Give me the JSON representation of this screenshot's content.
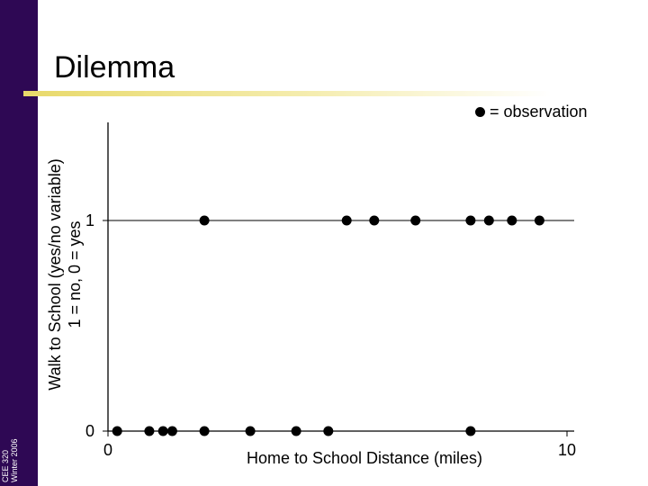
{
  "slide": {
    "title": "Dilemma",
    "sidebar_line1": "CEE 320",
    "sidebar_line2": "Winter 2006",
    "legend_text": "= observation"
  },
  "colors": {
    "sidebar": "#2e0854",
    "accent_rule": "#e8d96a",
    "marker": "#000000"
  },
  "chart_data": {
    "type": "scatter",
    "title": "Dilemma",
    "xlabel": "Home to School Distance (miles)",
    "ylabel_line1": "Walk to School (yes/no variable)",
    "ylabel_line2": "1 = no, 0 = yes",
    "xlim": [
      0,
      10
    ],
    "ylim": [
      0,
      1
    ],
    "x_ticks": [
      0,
      10
    ],
    "y_ticks": [
      0,
      1
    ],
    "x_tick_labels": [
      "0",
      "10"
    ],
    "y_tick_labels": [
      "0",
      "1"
    ],
    "reference_line_y": 1,
    "grid": false,
    "legend": "top-right",
    "points": [
      {
        "x": 0.2,
        "y": 0
      },
      {
        "x": 0.9,
        "y": 0
      },
      {
        "x": 1.2,
        "y": 0
      },
      {
        "x": 1.4,
        "y": 0
      },
      {
        "x": 2.1,
        "y": 0
      },
      {
        "x": 3.1,
        "y": 0
      },
      {
        "x": 4.1,
        "y": 0
      },
      {
        "x": 4.8,
        "y": 0
      },
      {
        "x": 7.9,
        "y": 0
      },
      {
        "x": 2.1,
        "y": 1
      },
      {
        "x": 5.2,
        "y": 1
      },
      {
        "x": 5.8,
        "y": 1
      },
      {
        "x": 6.7,
        "y": 1
      },
      {
        "x": 7.9,
        "y": 1
      },
      {
        "x": 8.3,
        "y": 1
      },
      {
        "x": 8.8,
        "y": 1
      },
      {
        "x": 9.4,
        "y": 1
      }
    ]
  }
}
